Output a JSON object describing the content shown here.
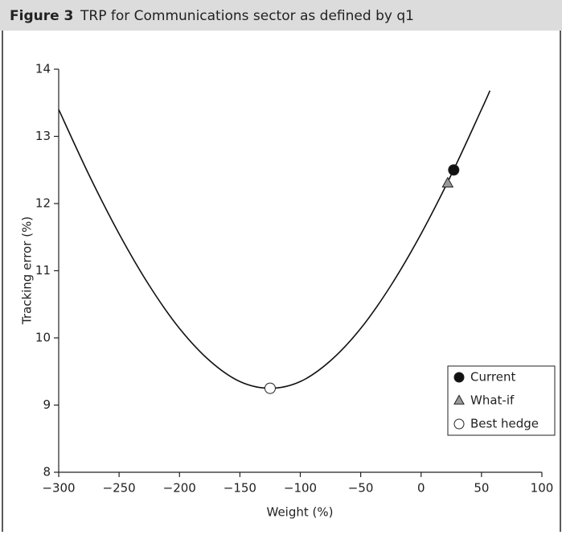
{
  "chart_data": {
    "type": "line",
    "figure_label": "Figure 3",
    "title": "TRP for Communications sector as defined by q1",
    "xlabel": "Weight (%)",
    "ylabel": "Tracking error (%)",
    "x": [
      -300,
      -275,
      -250,
      -225,
      -200,
      -175,
      -150,
      -125,
      -100,
      -75,
      -50,
      -25,
      0,
      25,
      50,
      57
    ],
    "series": [
      {
        "color": "#111111",
        "values": [
          13.4,
          12.43,
          11.55,
          10.78,
          10.14,
          9.66,
          9.35,
          9.25,
          9.35,
          9.66,
          10.14,
          10.78,
          11.55,
          12.43,
          13.4,
          13.68
        ]
      }
    ],
    "markers": [
      {
        "name": "Current",
        "x": 27,
        "y": 12.5,
        "color": "#111111",
        "shape": "circle"
      },
      {
        "name": "What-if",
        "x": 22,
        "y": 12.3,
        "color": "#999999",
        "shape": "triangle"
      },
      {
        "name": "Best hedge",
        "x": -125,
        "y": 9.25,
        "color": "#ffffff",
        "shape": "circle"
      }
    ],
    "xlim": [
      -300,
      100
    ],
    "ylim": [
      8,
      14
    ],
    "xticks": [
      {
        "value": -300,
        "label": "−300"
      },
      {
        "value": -250,
        "label": "−250"
      },
      {
        "value": -200,
        "label": "−200"
      },
      {
        "value": -150,
        "label": "−150"
      },
      {
        "value": -100,
        "label": "−100"
      },
      {
        "value": -50,
        "label": "−50"
      },
      0,
      50,
      100
    ],
    "yticks": [
      8,
      9,
      10,
      11,
      12,
      13,
      14
    ],
    "legend": "lower right"
  }
}
